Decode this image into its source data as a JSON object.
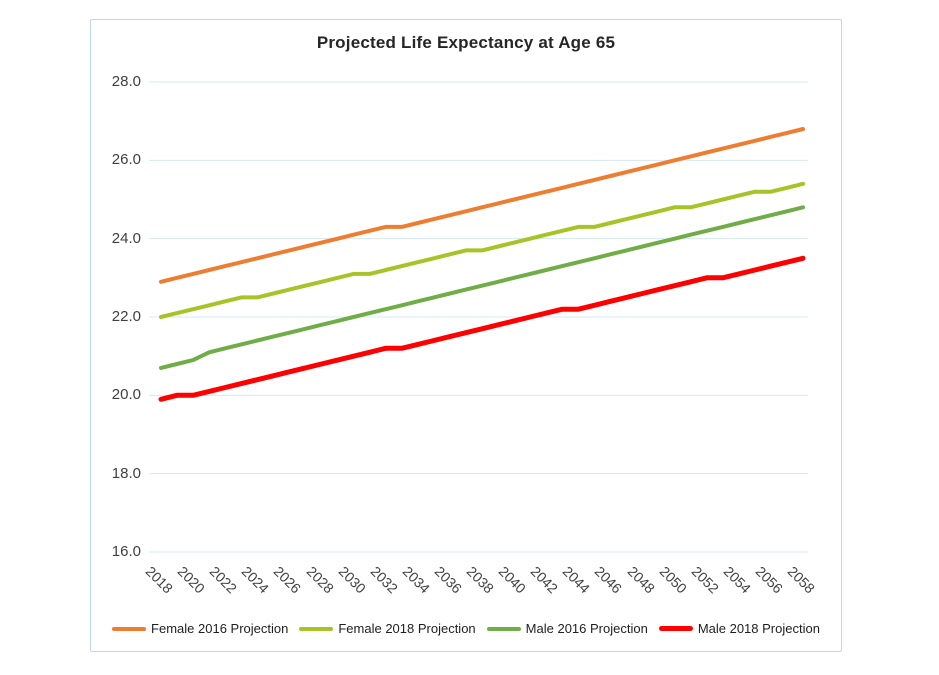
{
  "chart": {
    "title": {
      "part1": "Projected Life ",
      "part2": "Expectancy",
      "part3": " at Age 65"
    }
  },
  "chart_data": {
    "type": "line",
    "title": "Projected Life Expectancy at Age 65",
    "xlabel": "",
    "ylabel": "",
    "ylim": [
      16,
      28
    ],
    "grid": "horizontal",
    "legend_position": "bottom",
    "x": [
      2018,
      2019,
      2020,
      2021,
      2022,
      2023,
      2024,
      2025,
      2026,
      2027,
      2028,
      2029,
      2030,
      2031,
      2032,
      2033,
      2034,
      2035,
      2036,
      2037,
      2038,
      2039,
      2040,
      2041,
      2042,
      2043,
      2044,
      2045,
      2046,
      2047,
      2048,
      2049,
      2050,
      2051,
      2052,
      2053,
      2054,
      2055,
      2056,
      2057,
      2058
    ],
    "x_tick_labels": [
      "2018",
      "2020",
      "2022",
      "2024",
      "2026",
      "2028",
      "2030",
      "2032",
      "2034",
      "2036",
      "2038",
      "2040",
      "2042",
      "2044",
      "2046",
      "2048",
      "2050",
      "2052",
      "2054",
      "2056",
      "2058"
    ],
    "y_ticks": [
      16,
      18,
      20,
      22,
      24,
      26,
      28
    ],
    "y_tick_labels": [
      "16.0",
      "18.0",
      "20.0",
      "22.0",
      "24.0",
      "26.0",
      "28.0"
    ],
    "series": [
      {
        "name": "Female 2016 Projection",
        "color": "#ED7D31",
        "line_width": 4,
        "values": [
          22.9,
          23.0,
          23.1,
          23.2,
          23.3,
          23.4,
          23.5,
          23.6,
          23.7,
          23.8,
          23.9,
          24.0,
          24.1,
          24.2,
          24.3,
          24.3,
          24.4,
          24.5,
          24.6,
          24.7,
          24.8,
          24.9,
          25.0,
          25.1,
          25.2,
          25.3,
          25.4,
          25.5,
          25.6,
          25.7,
          25.8,
          25.9,
          26.0,
          26.1,
          26.2,
          26.3,
          26.4,
          26.5,
          26.6,
          26.7,
          26.8
        ]
      },
      {
        "name": "Female 2018 Projection",
        "color": "#A6C428",
        "line_width": 4,
        "values": [
          22.0,
          22.1,
          22.2,
          22.3,
          22.4,
          22.5,
          22.5,
          22.6,
          22.7,
          22.8,
          22.9,
          23.0,
          23.1,
          23.1,
          23.2,
          23.3,
          23.4,
          23.5,
          23.6,
          23.7,
          23.7,
          23.8,
          23.9,
          24.0,
          24.1,
          24.2,
          24.3,
          24.3,
          24.4,
          24.5,
          24.6,
          24.7,
          24.8,
          24.8,
          24.9,
          25.0,
          25.1,
          25.2,
          25.2,
          25.3,
          25.4
        ]
      },
      {
        "name": "Male 2016 Projection",
        "color": "#70AD47",
        "line_width": 4,
        "values": [
          20.7,
          20.8,
          20.9,
          21.1,
          21.2,
          21.3,
          21.4,
          21.5,
          21.6,
          21.7,
          21.8,
          21.9,
          22.0,
          22.1,
          22.2,
          22.3,
          22.4,
          22.5,
          22.6,
          22.7,
          22.8,
          22.9,
          23.0,
          23.1,
          23.2,
          23.3,
          23.4,
          23.5,
          23.6,
          23.7,
          23.8,
          23.9,
          24.0,
          24.1,
          24.2,
          24.3,
          24.4,
          24.5,
          24.6,
          24.7,
          24.8
        ]
      },
      {
        "name": "Male 2018 Projection",
        "color": "#FF0000",
        "line_width": 5,
        "values": [
          19.9,
          20.0,
          20.0,
          20.1,
          20.2,
          20.3,
          20.4,
          20.5,
          20.6,
          20.7,
          20.8,
          20.9,
          21.0,
          21.1,
          21.2,
          21.2,
          21.3,
          21.4,
          21.5,
          21.6,
          21.7,
          21.8,
          21.9,
          22.0,
          22.1,
          22.2,
          22.2,
          22.3,
          22.4,
          22.5,
          22.6,
          22.7,
          22.8,
          22.9,
          23.0,
          23.0,
          23.1,
          23.2,
          23.3,
          23.4,
          23.5
        ]
      }
    ],
    "colors": {
      "gridline": "#D6E8F5",
      "frame_border": "#BCD8EE",
      "axis_text": "#404040",
      "title_text": "#262626",
      "background": "#FFFFFF"
    }
  }
}
